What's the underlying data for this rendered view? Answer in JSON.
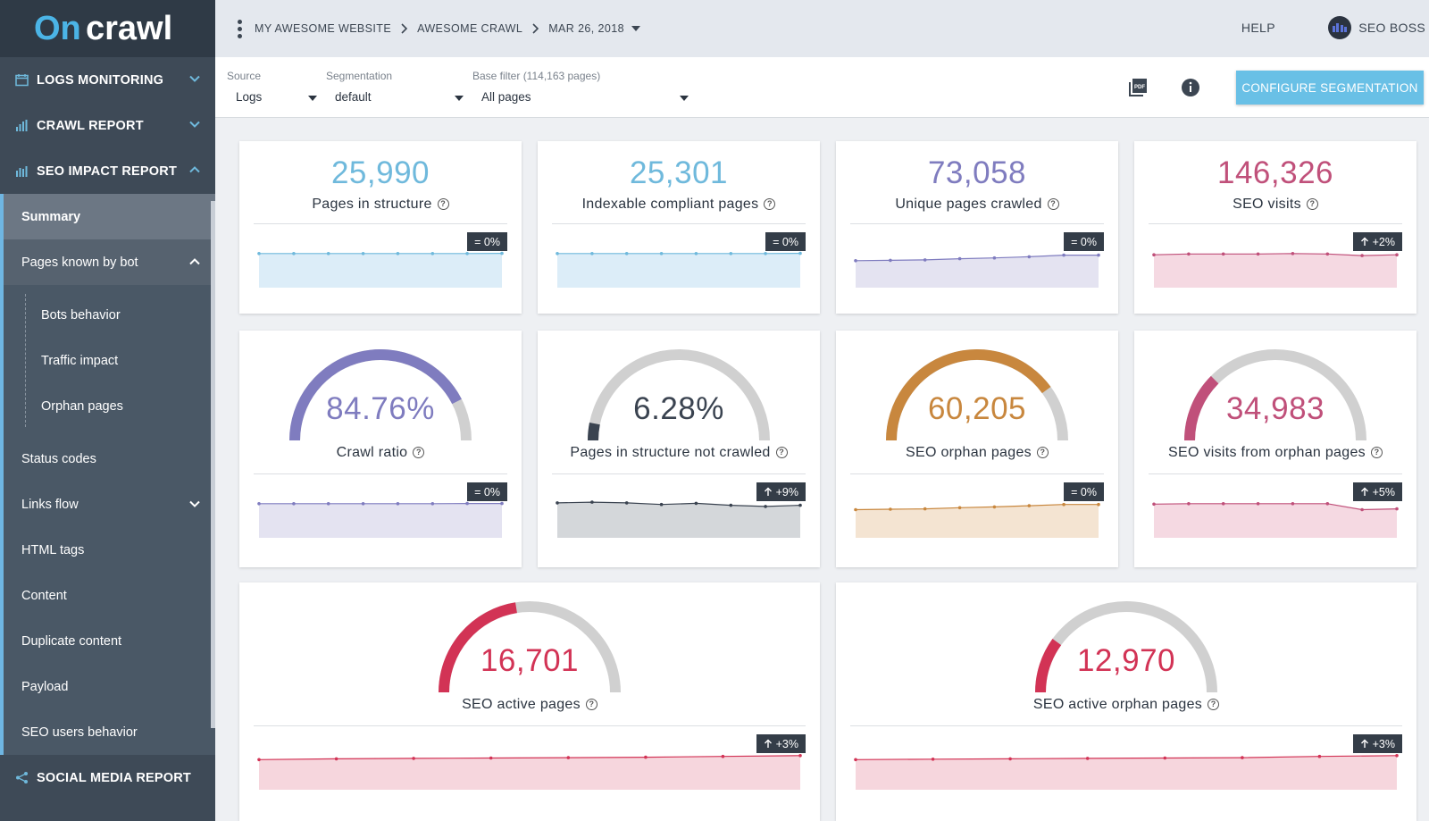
{
  "app": {
    "logo_text": "Oncrawl"
  },
  "breadcrumb": {
    "project": "MY AWESOME WEBSITE",
    "crawl": "AWESOME CRAWL",
    "date": "MAR 26, 2018"
  },
  "topbar": {
    "help": "HELP",
    "user": "SEO BOSS"
  },
  "sidebar": {
    "sections": {
      "logs": "LOGS MONITORING",
      "crawl": "CRAWL REPORT",
      "impact": "SEO IMPACT REPORT",
      "social": "SOCIAL MEDIA REPORT"
    },
    "items": {
      "summary": "Summary",
      "pages_known": "Pages known by bot",
      "bots_behavior": "Bots behavior",
      "traffic_impact": "Traffic impact",
      "orphan_pages": "Orphan pages",
      "status_codes": "Status codes",
      "links_flow": "Links flow",
      "html_tags": "HTML tags",
      "content": "Content",
      "duplicate": "Duplicate content",
      "payload": "Payload",
      "seo_users": "SEO users behavior"
    }
  },
  "filters": {
    "source": {
      "label": "Source",
      "value": "Logs"
    },
    "segmentation": {
      "label": "Segmentation",
      "value": "default"
    },
    "base": {
      "label": "Base filter (114,163 pages)",
      "value": "All pages"
    },
    "configure_button": "CONFIGURE SEGMENTATION"
  },
  "colors": {
    "blue": "#6fb9dc",
    "purple": "#7f7cbf",
    "pink": "#c0507a",
    "dark": "#3a4350",
    "orange": "#c8873e",
    "red": "#d23355",
    "gray_track": "#d0d0d0"
  },
  "cards": [
    {
      "value": "25,990",
      "label": "Pages in structure",
      "badge": "= 0%",
      "trend": "flat",
      "color": "blue",
      "spark": [
        5,
        5,
        5,
        5,
        5,
        5,
        5,
        5.05
      ]
    },
    {
      "value": "25,301",
      "label": "Indexable compliant pages",
      "badge": "= 0%",
      "trend": "flat",
      "color": "blue",
      "spark": [
        5,
        5,
        5,
        5,
        5,
        5,
        5,
        5.05
      ]
    },
    {
      "value": "73,058",
      "label": "Unique pages crawled",
      "badge": "= 0%",
      "trend": "flat",
      "color": "purple",
      "spark": [
        3.2,
        3.3,
        3.4,
        3.7,
        3.9,
        4.2,
        4.6,
        4.6
      ]
    },
    {
      "value": "146,326",
      "label": "SEO visits",
      "badge": "+2%",
      "trend": "up",
      "color": "pink",
      "spark": [
        4.7,
        4.9,
        4.9,
        4.9,
        5.0,
        4.9,
        4.5,
        4.7
      ]
    },
    {
      "value": "84.76%",
      "label": "Crawl ratio",
      "badge": "= 0%",
      "trend": "flat",
      "color": "purple",
      "gauge": 0.85,
      "spark": [
        5,
        5,
        5,
        5,
        5,
        5,
        5.05,
        5.05
      ]
    },
    {
      "value": "6.28%",
      "label": "Pages in structure not crawled",
      "badge": "+9%",
      "trend": "up",
      "color": "dark",
      "gauge": 0.063,
      "spark": [
        5.2,
        5.4,
        5.2,
        4.8,
        5.1,
        4.6,
        4.3,
        4.6
      ]
    },
    {
      "value": "60,205",
      "label": "SEO orphan pages",
      "badge": "= 0%",
      "trend": "flat",
      "color": "orange",
      "gauge": 0.8,
      "spark": [
        3.5,
        3.6,
        3.7,
        4.0,
        4.2,
        4.5,
        4.8,
        4.8
      ]
    },
    {
      "value": "34,983",
      "label": "SEO visits from orphan pages",
      "badge": "+5%",
      "trend": "up",
      "color": "pink",
      "gauge": 0.25,
      "spark": [
        4.9,
        5.0,
        5.0,
        5.0,
        5.0,
        5.0,
        3.5,
        3.7
      ]
    },
    {
      "value": "16,701",
      "label": "SEO active pages",
      "badge": "+3%",
      "trend": "up",
      "color": "red",
      "gauge": 0.45,
      "spark": [
        4.0,
        4.2,
        4.3,
        4.4,
        4.5,
        4.6,
        4.8,
        5.0
      ]
    },
    {
      "value": "12,970",
      "label": "SEO active orphan pages",
      "badge": "+3%",
      "trend": "up",
      "color": "red",
      "gauge": 0.2,
      "spark": [
        4.0,
        4.1,
        4.2,
        4.3,
        4.4,
        4.5,
        4.8,
        5.0
      ]
    }
  ]
}
